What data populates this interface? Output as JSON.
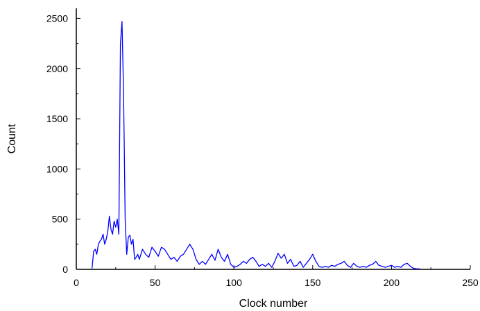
{
  "chart_data": {
    "type": "line",
    "title": "",
    "xlabel": "Clock number",
    "ylabel": "Count",
    "xlim": [
      0,
      250
    ],
    "ylim": [
      0,
      2600
    ],
    "x_ticks": [
      0,
      50,
      100,
      150,
      200,
      250
    ],
    "y_ticks": [
      0,
      500,
      1000,
      1500,
      2000,
      2500
    ],
    "grid": false,
    "legend": "none",
    "line_color": "#0000ff",
    "series": [
      {
        "x": [
          10,
          11,
          12,
          13,
          14,
          15,
          16,
          17,
          18,
          19,
          20,
          21,
          22,
          23,
          24,
          25,
          26,
          27,
          28,
          29,
          30,
          31,
          32,
          33,
          34,
          35,
          36,
          37,
          38,
          39,
          40,
          42,
          44,
          46,
          48,
          50,
          52,
          54,
          56,
          58,
          60,
          62,
          64,
          66,
          68,
          70,
          72,
          74,
          76,
          78,
          80,
          82,
          84,
          86,
          88,
          90,
          92,
          94,
          96,
          98,
          100,
          102,
          104,
          106,
          108,
          110,
          112,
          114,
          116,
          118,
          120,
          122,
          124,
          126,
          128,
          130,
          132,
          134,
          136,
          138,
          140,
          142,
          144,
          146,
          148,
          150,
          152,
          154,
          156,
          158,
          160,
          162,
          164,
          166,
          168,
          170,
          172,
          174,
          176,
          178,
          180,
          182,
          184,
          186,
          188,
          190,
          192,
          194,
          196,
          198,
          200,
          202,
          204,
          206,
          208,
          210,
          212,
          214,
          216,
          218
        ],
        "y": [
          10,
          180,
          200,
          150,
          250,
          280,
          300,
          350,
          250,
          300,
          380,
          530,
          400,
          350,
          480,
          420,
          500,
          350,
          2250,
          2470,
          1750,
          500,
          150,
          320,
          340,
          250,
          300,
          100,
          120,
          150,
          100,
          200,
          150,
          120,
          220,
          180,
          130,
          220,
          200,
          150,
          100,
          120,
          80,
          130,
          150,
          200,
          250,
          200,
          100,
          50,
          80,
          50,
          100,
          150,
          90,
          200,
          120,
          80,
          150,
          50,
          20,
          30,
          50,
          80,
          60,
          100,
          120,
          80,
          30,
          50,
          30,
          60,
          20,
          80,
          160,
          110,
          150,
          60,
          100,
          30,
          40,
          80,
          20,
          60,
          100,
          150,
          80,
          30,
          20,
          30,
          20,
          40,
          30,
          50,
          60,
          80,
          40,
          20,
          60,
          30,
          20,
          30,
          20,
          40,
          50,
          80,
          40,
          30,
          20,
          30,
          40,
          20,
          30,
          20,
          50,
          60,
          30,
          10,
          5,
          5
        ]
      }
    ]
  }
}
